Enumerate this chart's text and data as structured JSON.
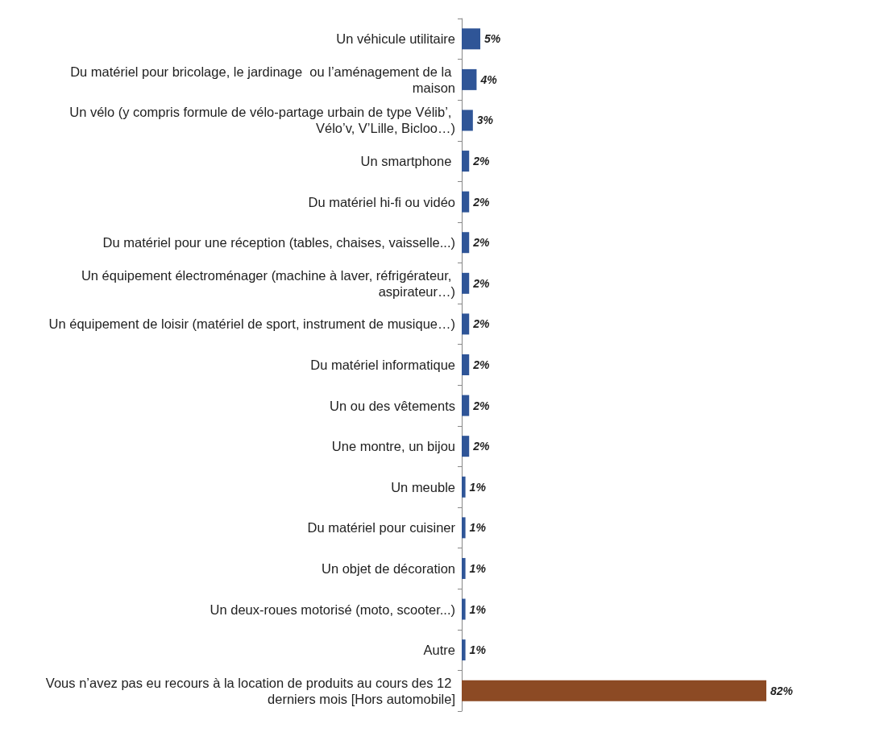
{
  "chart_data": {
    "type": "bar",
    "orientation": "horizontal",
    "categories": [
      "Un véhicule utilitaire",
      "Du matériel pour bricolage, le jardinage  ou l’aménagement de la maison",
      "Un vélo (y compris formule de vélo-partage urbain de type Vélib’, Vélo’v, V’Lille, Bicloo…)",
      "Un smartphone ",
      "Du matériel hi-fi ou vidéo",
      "Du matériel pour une réception (tables, chaises, vaisselle...)",
      "Un équipement électroménager (machine à laver, réfrigérateur, aspirateur…)",
      "Un équipement de loisir (matériel de sport, instrument de musique…)",
      "Du matériel informatique",
      "Un ou des vêtements",
      "Une montre, un bijou",
      "Un meuble",
      "Du matériel pour cuisiner",
      "Un objet de décoration",
      "Un deux-roues motorisé (moto, scooter...)",
      "Autre",
      "Vous n’avez pas eu recours à la location de produits au cours des 12 derniers mois [Hors automobile]"
    ],
    "values": [
      5,
      4,
      3,
      2,
      2,
      2,
      2,
      2,
      2,
      2,
      2,
      1,
      1,
      1,
      1,
      1,
      82
    ],
    "colors": [
      "#2f5597",
      "#2f5597",
      "#2f5597",
      "#2f5597",
      "#2f5597",
      "#2f5597",
      "#2f5597",
      "#2f5597",
      "#2f5597",
      "#2f5597",
      "#2f5597",
      "#2f5597",
      "#2f5597",
      "#2f5597",
      "#2f5597",
      "#2f5597",
      "#8c4a24"
    ],
    "value_labels": [
      "5%",
      "4%",
      "3%",
      "2%",
      "2%",
      "2%",
      "2%",
      "2%",
      "2%",
      "2%",
      "2%",
      "1%",
      "1%",
      "1%",
      "1%",
      "1%",
      "82%"
    ]
  }
}
